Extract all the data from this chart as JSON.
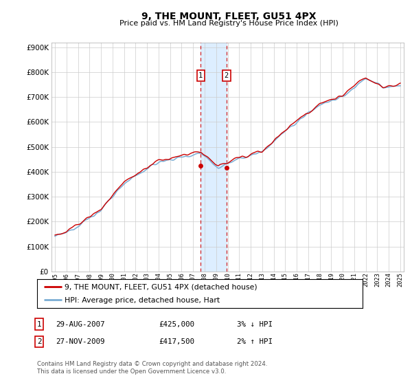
{
  "title": "9, THE MOUNT, FLEET, GU51 4PX",
  "subtitle": "Price paid vs. HM Land Registry's House Price Index (HPI)",
  "ylim": [
    0,
    920000
  ],
  "yticks": [
    0,
    100000,
    200000,
    300000,
    400000,
    500000,
    600000,
    700000,
    800000,
    900000
  ],
  "sale1": {
    "date_num": 2007.66,
    "price": 425000,
    "label": "1"
  },
  "sale2": {
    "date_num": 2009.9,
    "price": 417500,
    "label": "2"
  },
  "highlight_xmin": 2007.66,
  "highlight_xmax": 2009.9,
  "legend_label_red": "9, THE MOUNT, FLEET, GU51 4PX (detached house)",
  "legend_label_blue": "HPI: Average price, detached house, Hart",
  "table_row1": [
    "1",
    "29-AUG-2007",
    "£425,000",
    "3% ↓ HPI"
  ],
  "table_row2": [
    "2",
    "27-NOV-2009",
    "£417,500",
    "2% ↑ HPI"
  ],
  "footer": "Contains HM Land Registry data © Crown copyright and database right 2024.\nThis data is licensed under the Open Government Licence v3.0.",
  "xlim_left": 1994.7,
  "xlim_right": 2025.3,
  "red_color": "#cc0000",
  "blue_color": "#7aadd4",
  "highlight_color": "#ddeeff",
  "bg_color": "#ffffff",
  "grid_color": "#cccccc"
}
